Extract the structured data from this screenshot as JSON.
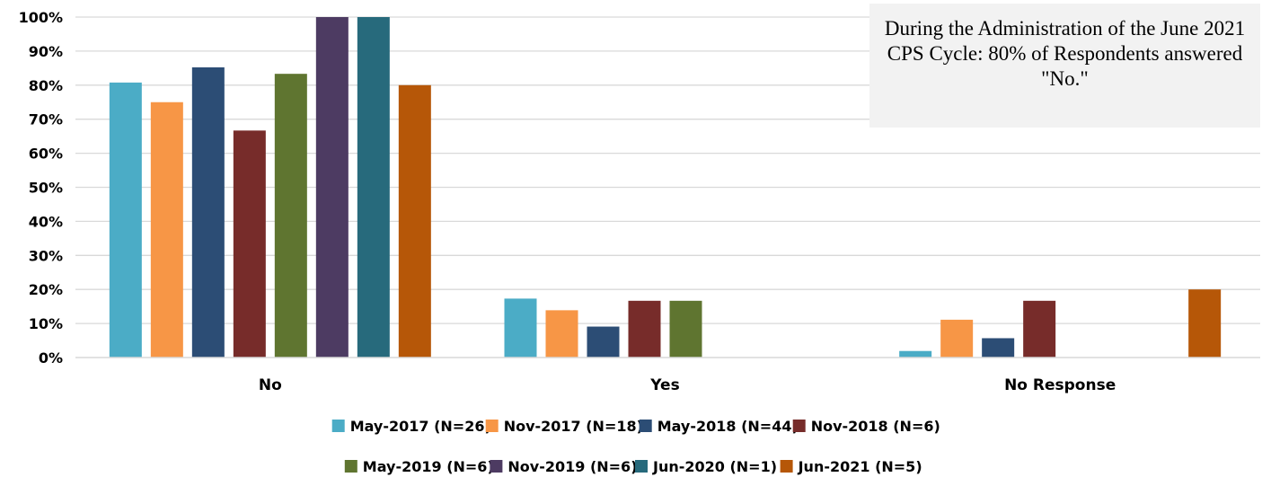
{
  "chart_data": {
    "type": "bar",
    "categories": [
      "No",
      "Yes",
      "No Response"
    ],
    "series": [
      {
        "name": "May-2017 (N=26)",
        "color": "#4bacc6",
        "values": [
          80.77,
          17.31,
          1.92
        ]
      },
      {
        "name": "Nov-2017 (N=18)",
        "color": "#f79646",
        "values": [
          75.0,
          13.89,
          11.11
        ]
      },
      {
        "name": "May-2018 (N=44)",
        "color": "#2c4d75",
        "values": [
          85.23,
          9.09,
          5.68
        ]
      },
      {
        "name": "Nov-2018 (N=6)",
        "color": "#772c2a",
        "values": [
          66.67,
          16.67,
          16.67
        ]
      },
      {
        "name": "May-2019 (N=6)",
        "color": "#5f7530",
        "values": [
          83.33,
          16.67,
          0
        ]
      },
      {
        "name": "Nov-2019 (N=6)",
        "color": "#4d3b62",
        "values": [
          100,
          0,
          0
        ]
      },
      {
        "name": "Jun-2020 (N=1)",
        "color": "#276a7c",
        "values": [
          100,
          0,
          0
        ]
      },
      {
        "name": "Jun-2021 (N=5)",
        "color": "#b65708",
        "values": [
          80,
          0,
          20
        ]
      }
    ],
    "yticks": [
      "0%",
      "10%",
      "20%",
      "30%",
      "40%",
      "50%",
      "60%",
      "70%",
      "80%",
      "90%",
      "100%"
    ],
    "ylim": [
      0,
      100
    ],
    "grid": true,
    "legend_position": "bottom",
    "title": "",
    "xlabel": "",
    "ylabel": "",
    "annotation": "During the Administration of the June 2021 CPS Cycle: 80% of Respondents answered \"No.\""
  }
}
